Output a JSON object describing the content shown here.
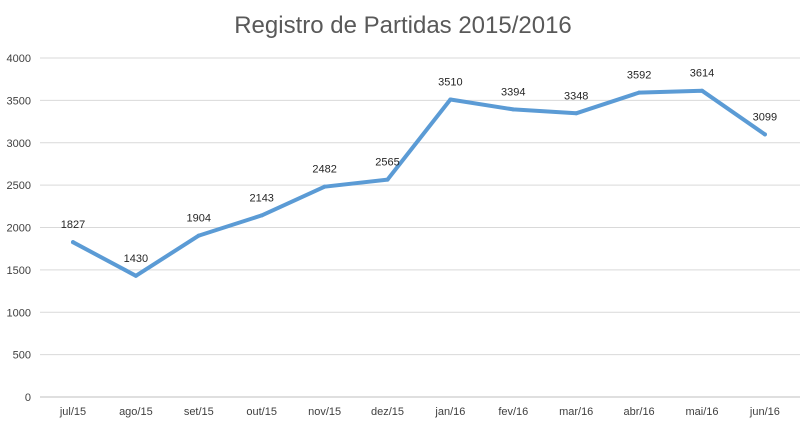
{
  "chart_data": {
    "type": "line",
    "title": "Registro de Partidas 2015/2016",
    "xlabel": "",
    "ylabel": "",
    "categories": [
      "jul/15",
      "ago/15",
      "set/15",
      "out/15",
      "nov/15",
      "dez/15",
      "jan/16",
      "fev/16",
      "mar/16",
      "abr/16",
      "mai/16",
      "jun/16"
    ],
    "series": [
      {
        "name": "Registro de Partidas",
        "values": [
          1827,
          1430,
          1904,
          2143,
          2482,
          2565,
          3510,
          3394,
          3348,
          3592,
          3614,
          3099
        ],
        "color": "#5b9bd5"
      }
    ],
    "data_labels": [
      "1827",
      "1430",
      "1904",
      "2143",
      "2482",
      "2565",
      "3510",
      "3394",
      "3348",
      "3592",
      "3614",
      "3099"
    ],
    "ylim": [
      0,
      4000
    ],
    "yticks": [
      0,
      500,
      1000,
      1500,
      2000,
      2500,
      3000,
      3500,
      4000
    ],
    "ytick_labels": [
      "0",
      "500",
      "1000",
      "1500",
      "2000",
      "2500",
      "3000",
      "3500",
      "4000"
    ],
    "grid": true,
    "legend": "none"
  },
  "colors": {
    "line": "#5b9bd5",
    "grid": "#d9d9d9",
    "title": "#595959"
  }
}
